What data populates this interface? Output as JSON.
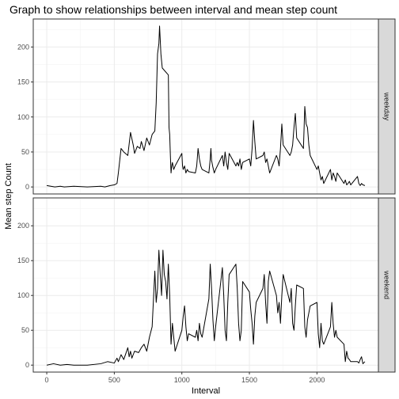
{
  "chart_data": {
    "type": "line",
    "title": "Graph to show relationships between interval and mean step count",
    "xlabel": "Interval",
    "ylabel": "Mean step Count",
    "xlim": [
      -100,
      2455
    ],
    "ylim": [
      -10,
      240
    ],
    "x_ticks": [
      0,
      500,
      1000,
      1500,
      2000
    ],
    "y_ticks": [
      0,
      50,
      100,
      150,
      200
    ],
    "grid": true,
    "legend": "none",
    "line_color": "#000000",
    "panels": [
      {
        "name": "weekday",
        "x": [
          0,
          30,
          60,
          100,
          130,
          200,
          300,
          400,
          430,
          470,
          500,
          520,
          530,
          550,
          570,
          600,
          620,
          640,
          650,
          670,
          690,
          700,
          720,
          740,
          760,
          780,
          800,
          810,
          820,
          830,
          835,
          840,
          845,
          850,
          855,
          900,
          905,
          910,
          915,
          920,
          925,
          930,
          940,
          950,
          1000,
          1005,
          1010,
          1020,
          1030,
          1040,
          1050,
          1100,
          1110,
          1120,
          1130,
          1140,
          1150,
          1200,
          1210,
          1215,
          1220,
          1230,
          1240,
          1250,
          1300,
          1310,
          1320,
          1330,
          1340,
          1350,
          1400,
          1410,
          1420,
          1430,
          1440,
          1450,
          1500,
          1510,
          1520,
          1530,
          1540,
          1550,
          1600,
          1610,
          1620,
          1630,
          1640,
          1650,
          1700,
          1710,
          1720,
          1730,
          1740,
          1750,
          1800,
          1810,
          1820,
          1830,
          1840,
          1850,
          1900,
          1910,
          1920,
          1930,
          1940,
          1950,
          2000,
          2010,
          2020,
          2030,
          2040,
          2050,
          2100,
          2110,
          2120,
          2130,
          2140,
          2150,
          2200,
          2210,
          2220,
          2230,
          2240,
          2250,
          2300,
          2310,
          2320,
          2330,
          2340,
          2355
        ],
        "y": [
          2,
          1,
          0,
          1,
          0,
          1,
          0,
          1,
          0,
          2,
          3,
          5,
          20,
          55,
          50,
          45,
          78,
          60,
          48,
          58,
          55,
          65,
          52,
          70,
          60,
          75,
          80,
          120,
          190,
          205,
          230,
          210,
          190,
          180,
          170,
          160,
          85,
          75,
          45,
          20,
          30,
          35,
          25,
          30,
          48,
          30,
          25,
          30,
          20,
          25,
          22,
          20,
          30,
          55,
          40,
          30,
          25,
          20,
          40,
          55,
          38,
          28,
          20,
          25,
          45,
          30,
          50,
          35,
          25,
          48,
          30,
          35,
          30,
          40,
          25,
          35,
          40,
          30,
          55,
          95,
          65,
          40,
          45,
          50,
          35,
          40,
          30,
          20,
          45,
          40,
          30,
          55,
          90,
          60,
          45,
          50,
          60,
          85,
          105,
          70,
          55,
          115,
          90,
          85,
          60,
          45,
          25,
          30,
          20,
          10,
          15,
          5,
          25,
          10,
          20,
          15,
          8,
          20,
          5,
          10,
          3,
          5,
          8,
          3,
          15,
          5,
          2,
          5,
          3,
          2
        ],
        "strip_fill": "#d9d9d9"
      },
      {
        "name": "weekend",
        "x": [
          0,
          50,
          100,
          150,
          200,
          300,
          400,
          450,
          500,
          520,
          530,
          550,
          570,
          600,
          610,
          620,
          630,
          640,
          650,
          680,
          700,
          720,
          740,
          760,
          780,
          800,
          810,
          820,
          830,
          840,
          850,
          860,
          870,
          880,
          890,
          900,
          910,
          920,
          930,
          950,
          1000,
          1010,
          1020,
          1030,
          1040,
          1050,
          1100,
          1110,
          1120,
          1130,
          1140,
          1150,
          1200,
          1210,
          1220,
          1230,
          1240,
          1250,
          1300,
          1310,
          1320,
          1330,
          1340,
          1350,
          1400,
          1410,
          1420,
          1430,
          1440,
          1450,
          1500,
          1510,
          1520,
          1530,
          1540,
          1550,
          1600,
          1610,
          1620,
          1630,
          1640,
          1650,
          1700,
          1710,
          1720,
          1730,
          1740,
          1750,
          1800,
          1810,
          1820,
          1830,
          1840,
          1850,
          1900,
          1910,
          1920,
          1930,
          1940,
          1950,
          2000,
          2010,
          2020,
          2030,
          2040,
          2050,
          2100,
          2110,
          2120,
          2130,
          2140,
          2150,
          2200,
          2210,
          2220,
          2230,
          2240,
          2250,
          2300,
          2310,
          2320,
          2330,
          2340,
          2355
        ],
        "y": [
          0,
          2,
          0,
          1,
          0,
          0,
          2,
          5,
          3,
          10,
          5,
          15,
          8,
          25,
          12,
          20,
          10,
          15,
          20,
          18,
          25,
          30,
          20,
          40,
          55,
          135,
          90,
          110,
          165,
          130,
          100,
          165,
          130,
          120,
          95,
          145,
          100,
          30,
          60,
          20,
          50,
          70,
          85,
          55,
          35,
          45,
          40,
          50,
          35,
          60,
          45,
          40,
          95,
          145,
          110,
          65,
          35,
          55,
          140,
          100,
          50,
          35,
          90,
          130,
          145,
          110,
          60,
          35,
          50,
          120,
          105,
          80,
          60,
          30,
          70,
          90,
          110,
          130,
          90,
          60,
          120,
          135,
          100,
          75,
          90,
          60,
          100,
          130,
          90,
          110,
          60,
          50,
          85,
          115,
          110,
          55,
          40,
          65,
          75,
          85,
          90,
          45,
          25,
          60,
          35,
          30,
          55,
          90,
          60,
          40,
          50,
          40,
          30,
          5,
          20,
          10,
          8,
          5,
          5,
          3,
          8,
          12,
          2,
          5
        ]
      }
    ]
  }
}
